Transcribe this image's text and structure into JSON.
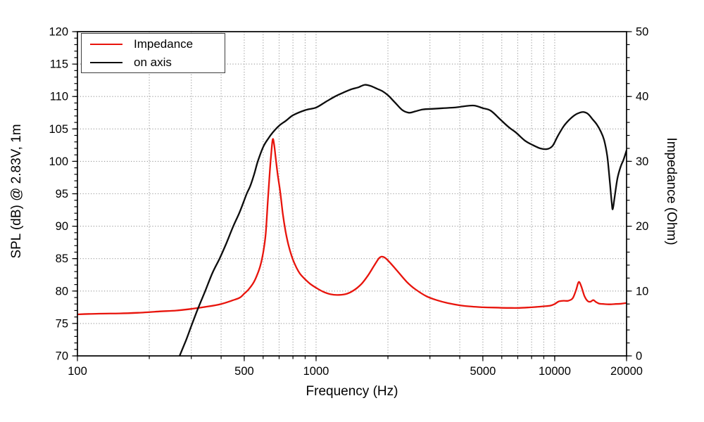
{
  "page": {
    "background": "#ffffff"
  },
  "colors": {
    "impedance_line": "#e8140c",
    "on_axis_line": "#0d0d0d",
    "grid": "#999999",
    "frame": "#000000",
    "legend_border": "#3d3d3d",
    "text": "#000000"
  },
  "legend": {
    "entries": [
      {
        "label": "Impedance",
        "color": "#e8140c"
      },
      {
        "label": "on axis",
        "color": "#0d0d0d"
      }
    ],
    "position": "top-left"
  },
  "chart_data": {
    "type": "line",
    "title": "",
    "x_axis": {
      "label": "Frequency (Hz)",
      "scale": "log",
      "min": 100,
      "max": 20000,
      "major_ticks": [
        100,
        500,
        1000,
        5000,
        10000,
        20000
      ],
      "major_tick_labels": [
        "100",
        "500",
        "1000",
        "5000",
        "10000",
        "20000"
      ],
      "minor_ticks": [
        200,
        300,
        400,
        500,
        600,
        700,
        800,
        900,
        1000,
        2000,
        3000,
        4000,
        5000,
        6000,
        7000,
        8000,
        9000,
        10000,
        20000
      ]
    },
    "y_left": {
      "label": "SPL (dB) @ 2.83V, 1m",
      "min": 70,
      "max": 120,
      "major_step": 5,
      "minor_step": 1,
      "major_ticks": [
        70,
        75,
        80,
        85,
        90,
        95,
        100,
        105,
        110,
        115,
        120
      ]
    },
    "y_right": {
      "label": "Impedance (Ohm)",
      "min": 0,
      "max": 50,
      "major_step": 10,
      "minor_step": 2,
      "major_ticks": [
        0,
        10,
        20,
        30,
        40,
        50
      ]
    },
    "grid": {
      "show": true,
      "style": "dotted",
      "color": "#999999"
    },
    "legend_position": "top-left",
    "series": [
      {
        "name": "Impedance",
        "axis": "right",
        "unit": "Ohm",
        "color": "#e8140c",
        "points": [
          [
            100,
            6.4
          ],
          [
            120,
            6.5
          ],
          [
            150,
            6.55
          ],
          [
            180,
            6.65
          ],
          [
            220,
            6.85
          ],
          [
            260,
            7.0
          ],
          [
            300,
            7.25
          ],
          [
            350,
            7.6
          ],
          [
            400,
            8.0
          ],
          [
            450,
            8.6
          ],
          [
            480,
            9.0
          ],
          [
            500,
            9.6
          ],
          [
            520,
            10.2
          ],
          [
            545,
            11.2
          ],
          [
            565,
            12.4
          ],
          [
            585,
            14.0
          ],
          [
            600,
            15.9
          ],
          [
            615,
            18.8
          ],
          [
            628,
            24.0
          ],
          [
            640,
            28.5
          ],
          [
            650,
            31.6
          ],
          [
            658,
            33.4
          ],
          [
            666,
            32.8
          ],
          [
            676,
            30.8
          ],
          [
            690,
            28.0
          ],
          [
            707,
            25.4
          ],
          [
            725,
            22.0
          ],
          [
            745,
            19.2
          ],
          [
            765,
            17.2
          ],
          [
            790,
            15.4
          ],
          [
            820,
            13.9
          ],
          [
            855,
            12.7
          ],
          [
            895,
            11.9
          ],
          [
            945,
            11.1
          ],
          [
            1000,
            10.5
          ],
          [
            1070,
            9.9
          ],
          [
            1150,
            9.5
          ],
          [
            1250,
            9.4
          ],
          [
            1350,
            9.6
          ],
          [
            1450,
            10.2
          ],
          [
            1550,
            11.1
          ],
          [
            1650,
            12.4
          ],
          [
            1750,
            13.9
          ],
          [
            1830,
            15.0
          ],
          [
            1880,
            15.3
          ],
          [
            1950,
            15.1
          ],
          [
            2050,
            14.3
          ],
          [
            2200,
            13.0
          ],
          [
            2400,
            11.4
          ],
          [
            2600,
            10.3
          ],
          [
            2900,
            9.2
          ],
          [
            3200,
            8.6
          ],
          [
            3600,
            8.1
          ],
          [
            4000,
            7.8
          ],
          [
            4500,
            7.6
          ],
          [
            5000,
            7.5
          ],
          [
            5600,
            7.45
          ],
          [
            6300,
            7.4
          ],
          [
            7100,
            7.4
          ],
          [
            8000,
            7.5
          ],
          [
            9000,
            7.65
          ],
          [
            9600,
            7.75
          ],
          [
            10000,
            8.0
          ],
          [
            10400,
            8.4
          ],
          [
            10900,
            8.5
          ],
          [
            11400,
            8.5
          ],
          [
            11900,
            8.9
          ],
          [
            12300,
            10.2
          ],
          [
            12600,
            11.4
          ],
          [
            12900,
            10.8
          ],
          [
            13300,
            9.3
          ],
          [
            13700,
            8.5
          ],
          [
            14100,
            8.35
          ],
          [
            14500,
            8.6
          ],
          [
            14900,
            8.3
          ],
          [
            15400,
            8.05
          ],
          [
            16000,
            8.0
          ],
          [
            17000,
            7.95
          ],
          [
            18000,
            8.0
          ],
          [
            19000,
            8.05
          ],
          [
            20000,
            8.15
          ]
        ]
      },
      {
        "name": "on axis",
        "axis": "left",
        "unit": "dB",
        "color": "#0d0d0d",
        "points": [
          [
            268,
            70.0
          ],
          [
            285,
            72.4
          ],
          [
            300,
            74.6
          ],
          [
            320,
            77.3
          ],
          [
            343,
            80.0
          ],
          [
            368,
            82.8
          ],
          [
            394,
            85.0
          ],
          [
            420,
            87.3
          ],
          [
            450,
            90.0
          ],
          [
            480,
            92.3
          ],
          [
            512,
            95.0
          ],
          [
            530,
            96.2
          ],
          [
            550,
            98.0
          ],
          [
            570,
            100.0
          ],
          [
            600,
            102.2
          ],
          [
            630,
            103.5
          ],
          [
            660,
            104.5
          ],
          [
            700,
            105.5
          ],
          [
            750,
            106.3
          ],
          [
            800,
            107.1
          ],
          [
            900,
            107.9
          ],
          [
            1000,
            108.3
          ],
          [
            1100,
            109.2
          ],
          [
            1200,
            110.0
          ],
          [
            1300,
            110.6
          ],
          [
            1400,
            111.1
          ],
          [
            1500,
            111.4
          ],
          [
            1600,
            111.8
          ],
          [
            1700,
            111.6
          ],
          [
            1800,
            111.2
          ],
          [
            1900,
            110.8
          ],
          [
            2000,
            110.2
          ],
          [
            2150,
            109.0
          ],
          [
            2300,
            107.9
          ],
          [
            2450,
            107.5
          ],
          [
            2600,
            107.7
          ],
          [
            2800,
            108.0
          ],
          [
            3100,
            108.1
          ],
          [
            3400,
            108.2
          ],
          [
            3800,
            108.3
          ],
          [
            4200,
            108.5
          ],
          [
            4600,
            108.6
          ],
          [
            5000,
            108.2
          ],
          [
            5400,
            107.8
          ],
          [
            5900,
            106.5
          ],
          [
            6400,
            105.3
          ],
          [
            6900,
            104.4
          ],
          [
            7500,
            103.2
          ],
          [
            8100,
            102.5
          ],
          [
            8700,
            102.0
          ],
          [
            9300,
            101.9
          ],
          [
            9800,
            102.4
          ],
          [
            10300,
            103.9
          ],
          [
            10900,
            105.4
          ],
          [
            11500,
            106.4
          ],
          [
            12100,
            107.1
          ],
          [
            12700,
            107.5
          ],
          [
            13200,
            107.6
          ],
          [
            13800,
            107.3
          ],
          [
            14400,
            106.5
          ],
          [
            15000,
            105.7
          ],
          [
            15600,
            104.6
          ],
          [
            16100,
            103.3
          ],
          [
            16600,
            100.8
          ],
          [
            17000,
            97.0
          ],
          [
            17300,
            94.0
          ],
          [
            17500,
            92.6
          ],
          [
            17800,
            94.3
          ],
          [
            18300,
            97.3
          ],
          [
            18900,
            99.2
          ],
          [
            19400,
            100.2
          ],
          [
            20000,
            101.7
          ]
        ]
      }
    ]
  }
}
